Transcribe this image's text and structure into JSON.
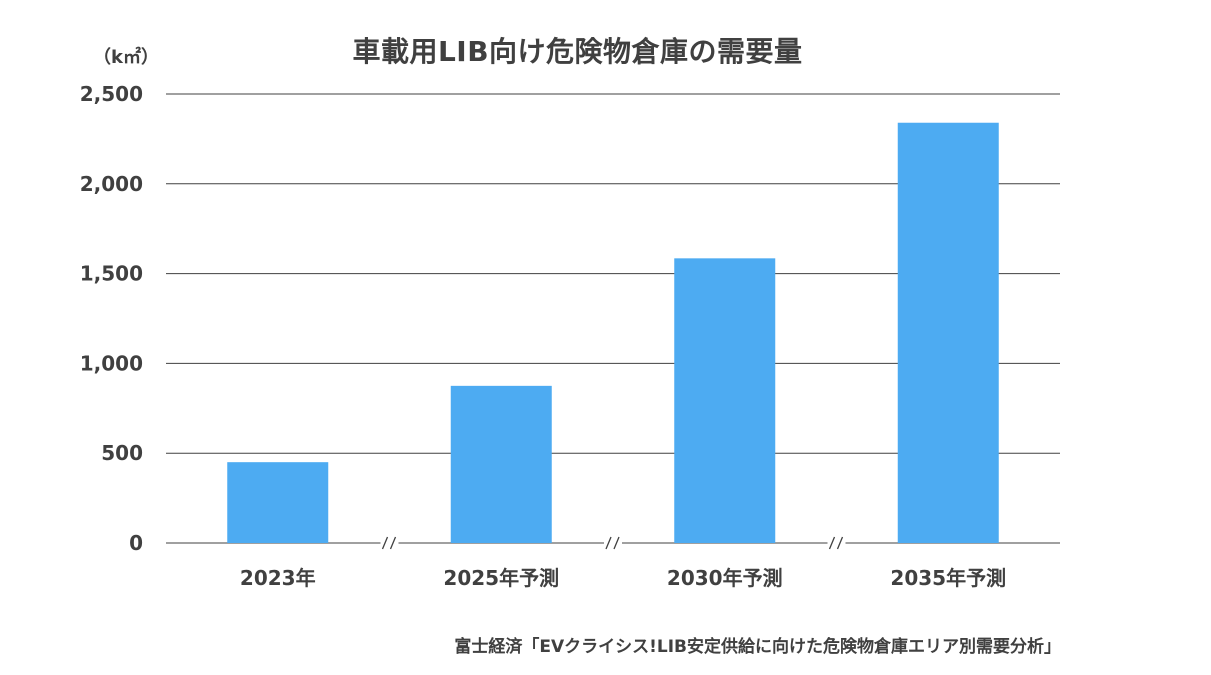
{
  "chart_data": {
    "type": "bar",
    "title": "車載用LIB向け危険物倉庫の需要量",
    "ylabel": "（k㎡）",
    "xlabel": "",
    "categories": [
      "2023年",
      "2025年予測",
      "2030年予測",
      "2035年予測"
    ],
    "values": [
      450,
      875,
      1585,
      2340
    ],
    "ylim": [
      0,
      2500
    ],
    "yticks": [
      0,
      500,
      1000,
      1500,
      2000,
      2500
    ],
    "ytick_labels": [
      "0",
      "500",
      "1,000",
      "1,500",
      "2,000",
      "2,500"
    ],
    "grid": true,
    "axis_break_mark": "//",
    "bar_color": "#4dabf2",
    "grid_color": "#404040"
  },
  "source": "富士経済「EVクライシス!LIB安定供給に向けた危険物倉庫エリア別需要分析」"
}
